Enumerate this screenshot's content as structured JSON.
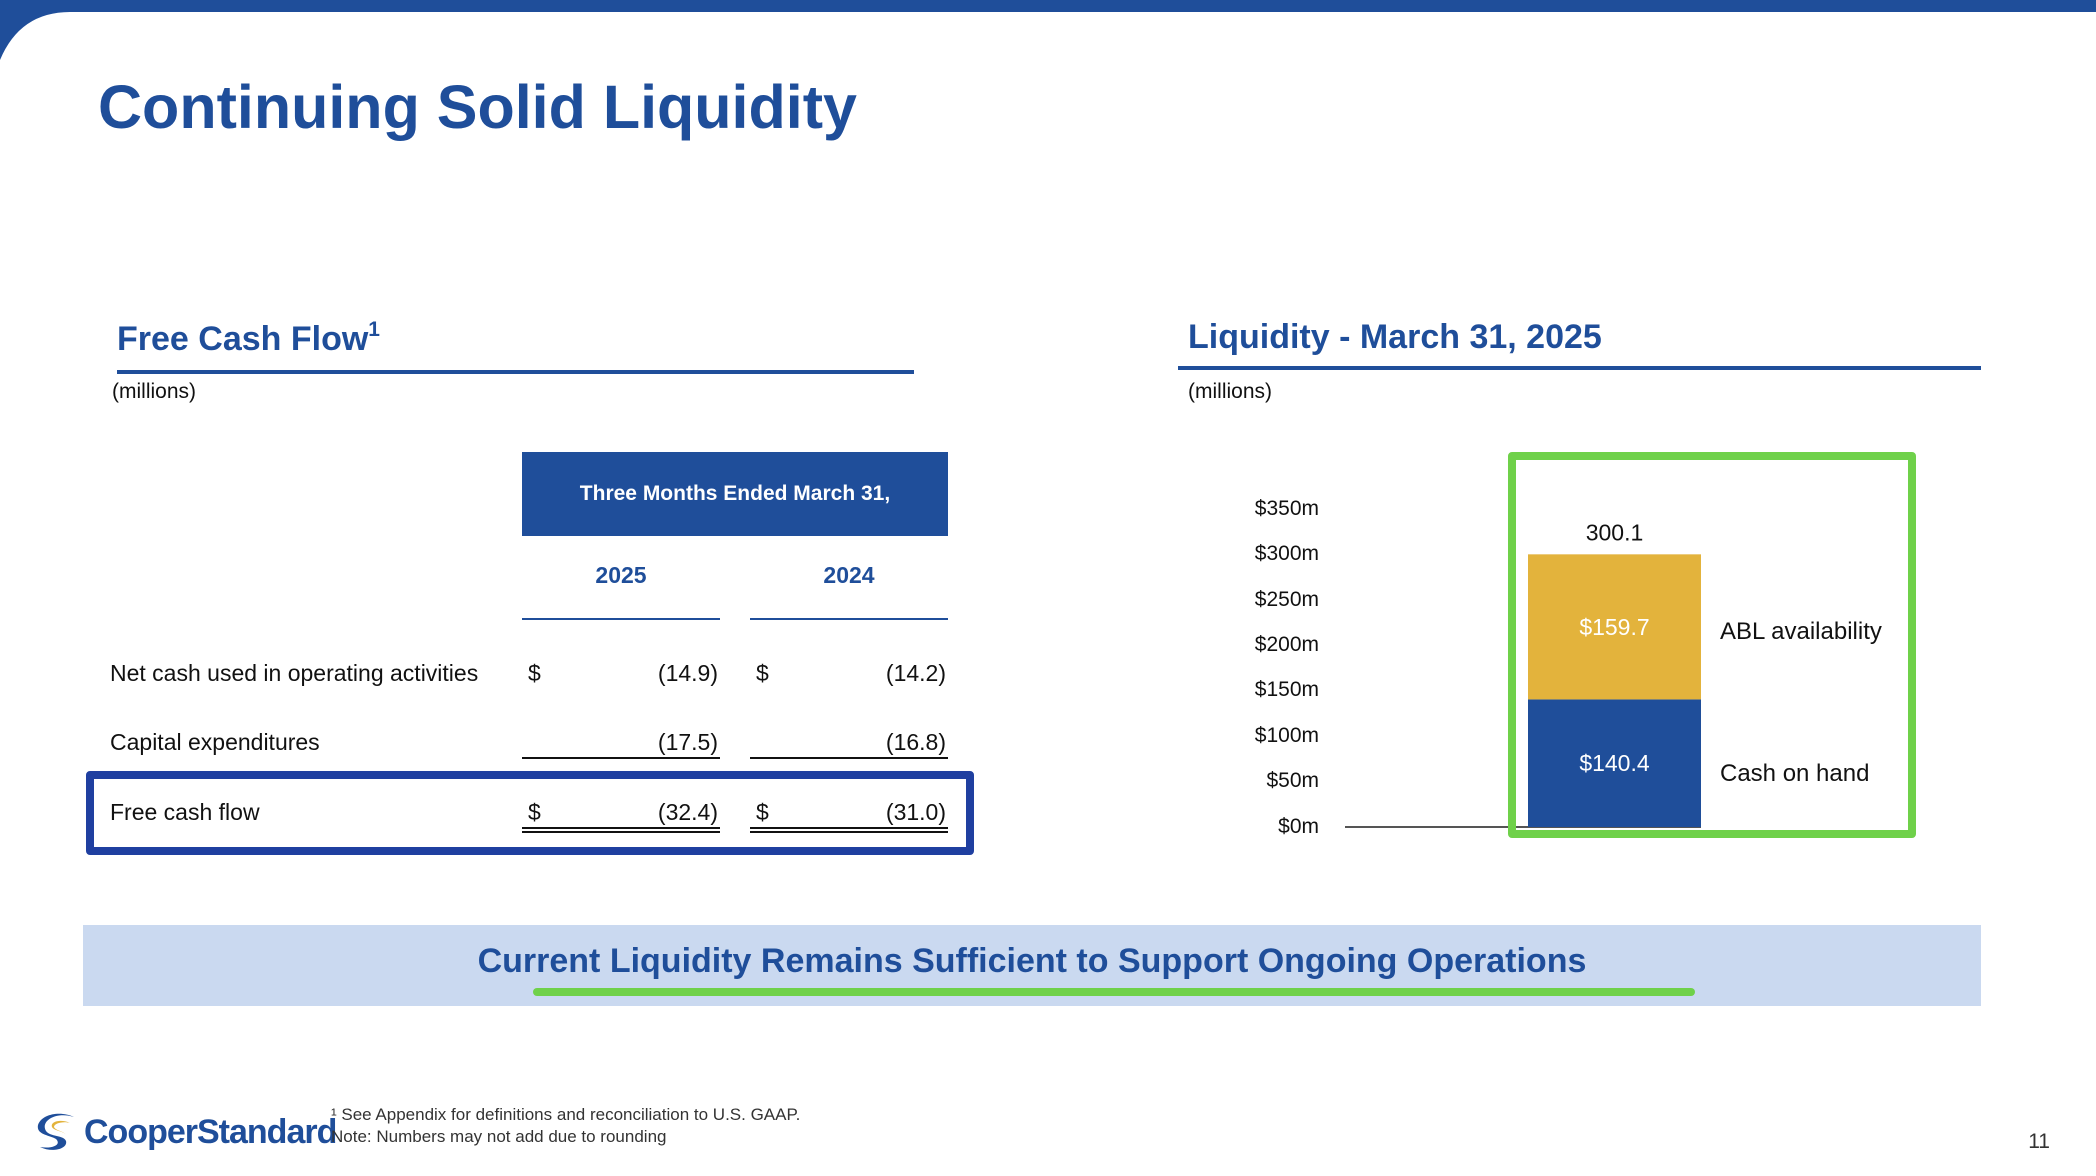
{
  "slide": {
    "title": "Continuing Solid Liquidity",
    "page_number": "11",
    "brand_color": "#1f4e9a",
    "accent_green": "#6fd14a"
  },
  "free_cash_flow": {
    "title": "Free Cash Flow",
    "footnote_marker": "1",
    "units": "(millions)",
    "header": "Three Months Ended March 31,",
    "years": [
      "2025",
      "2024"
    ],
    "rows": [
      {
        "label": "Net cash used in operating activities",
        "c1_dollar": "$",
        "c1_value": "(14.9)",
        "c2_dollar": "$",
        "c2_value": "(14.2)"
      },
      {
        "label": "Capital expenditures",
        "c1_dollar": "",
        "c1_value": "(17.5)",
        "c2_dollar": "",
        "c2_value": "(16.8)"
      },
      {
        "label": "Free cash flow",
        "c1_dollar": "$",
        "c1_value": "(32.4)",
        "c2_dollar": "$",
        "c2_value": "(31.0)"
      }
    ]
  },
  "liquidity": {
    "title": "Liquidity - March 31, 2025",
    "units": "(millions)"
  },
  "chart_data": {
    "type": "bar",
    "stacked": true,
    "title": "Liquidity - March 31, 2025",
    "categories": [
      "March 31, 2025"
    ],
    "series": [
      {
        "name": "Cash on hand",
        "values": [
          140.4
        ],
        "label": "$140.4",
        "color": "#1f4e9a"
      },
      {
        "name": "ABL availability",
        "values": [
          159.7
        ],
        "label": "$159.7",
        "color": "#e3b33c"
      }
    ],
    "total_label": "300.1",
    "total": 300.1,
    "ylim": [
      0,
      350
    ],
    "yticks": [
      0,
      50,
      100,
      150,
      200,
      250,
      300,
      350
    ],
    "ytick_labels": [
      "$0m",
      "$50m",
      "$100m",
      "$150m",
      "$200m",
      "$250m",
      "$300m",
      "$350m"
    ],
    "legend_placement": "right of bar",
    "grid": false
  },
  "banner": {
    "text": "Current Liquidity Remains Sufficient to Support Ongoing Operations"
  },
  "footer": {
    "logo_text": "CooperStandard",
    "footnote_1": "¹ See Appendix for definitions and reconciliation to U.S. GAAP.",
    "note": "Note:  Numbers may not add due to rounding"
  }
}
